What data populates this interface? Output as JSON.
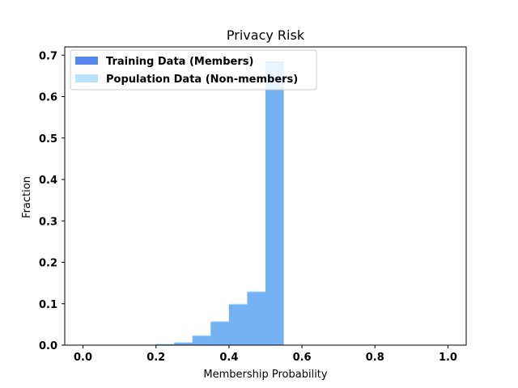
{
  "chart_data": {
    "type": "bar",
    "title": "Privacy Risk",
    "xlabel": "Membership Probability",
    "ylabel": "Fraction",
    "xlim": [
      -0.05,
      1.05
    ],
    "ylim": [
      0.0,
      0.72
    ],
    "xticks": [
      "0.0",
      "0.2",
      "0.4",
      "0.6",
      "0.8",
      "1.0"
    ],
    "yticks": [
      "0.0",
      "0.1",
      "0.2",
      "0.3",
      "0.4",
      "0.5",
      "0.6",
      "0.7"
    ],
    "bin_edges": [
      0.0,
      0.05,
      0.1,
      0.15,
      0.2,
      0.25,
      0.3,
      0.35,
      0.4,
      0.45,
      0.5,
      0.55,
      0.6,
      0.65,
      0.7,
      0.75,
      0.8,
      0.85,
      0.9,
      0.95,
      1.0
    ],
    "series": [
      {
        "name": "Training Data (Members)",
        "color": "#1f5fe6",
        "opacity": 0.75,
        "values": [
          0,
          0,
          0,
          0,
          0.002,
          0.006,
          0.022,
          0.056,
          0.098,
          0.128,
          0.685,
          0,
          0,
          0,
          0,
          0,
          0,
          0,
          0,
          0
        ]
      },
      {
        "name": "Population Data (Non-members)",
        "color": "#87cefa",
        "opacity": 0.6,
        "values": [
          0,
          0,
          0,
          0,
          0.003,
          0.007,
          0.024,
          0.058,
          0.1,
          0.13,
          0.682,
          0,
          0,
          0,
          0,
          0,
          0,
          0,
          0,
          0
        ]
      }
    ],
    "grid": false,
    "legend_position": "top-left"
  }
}
